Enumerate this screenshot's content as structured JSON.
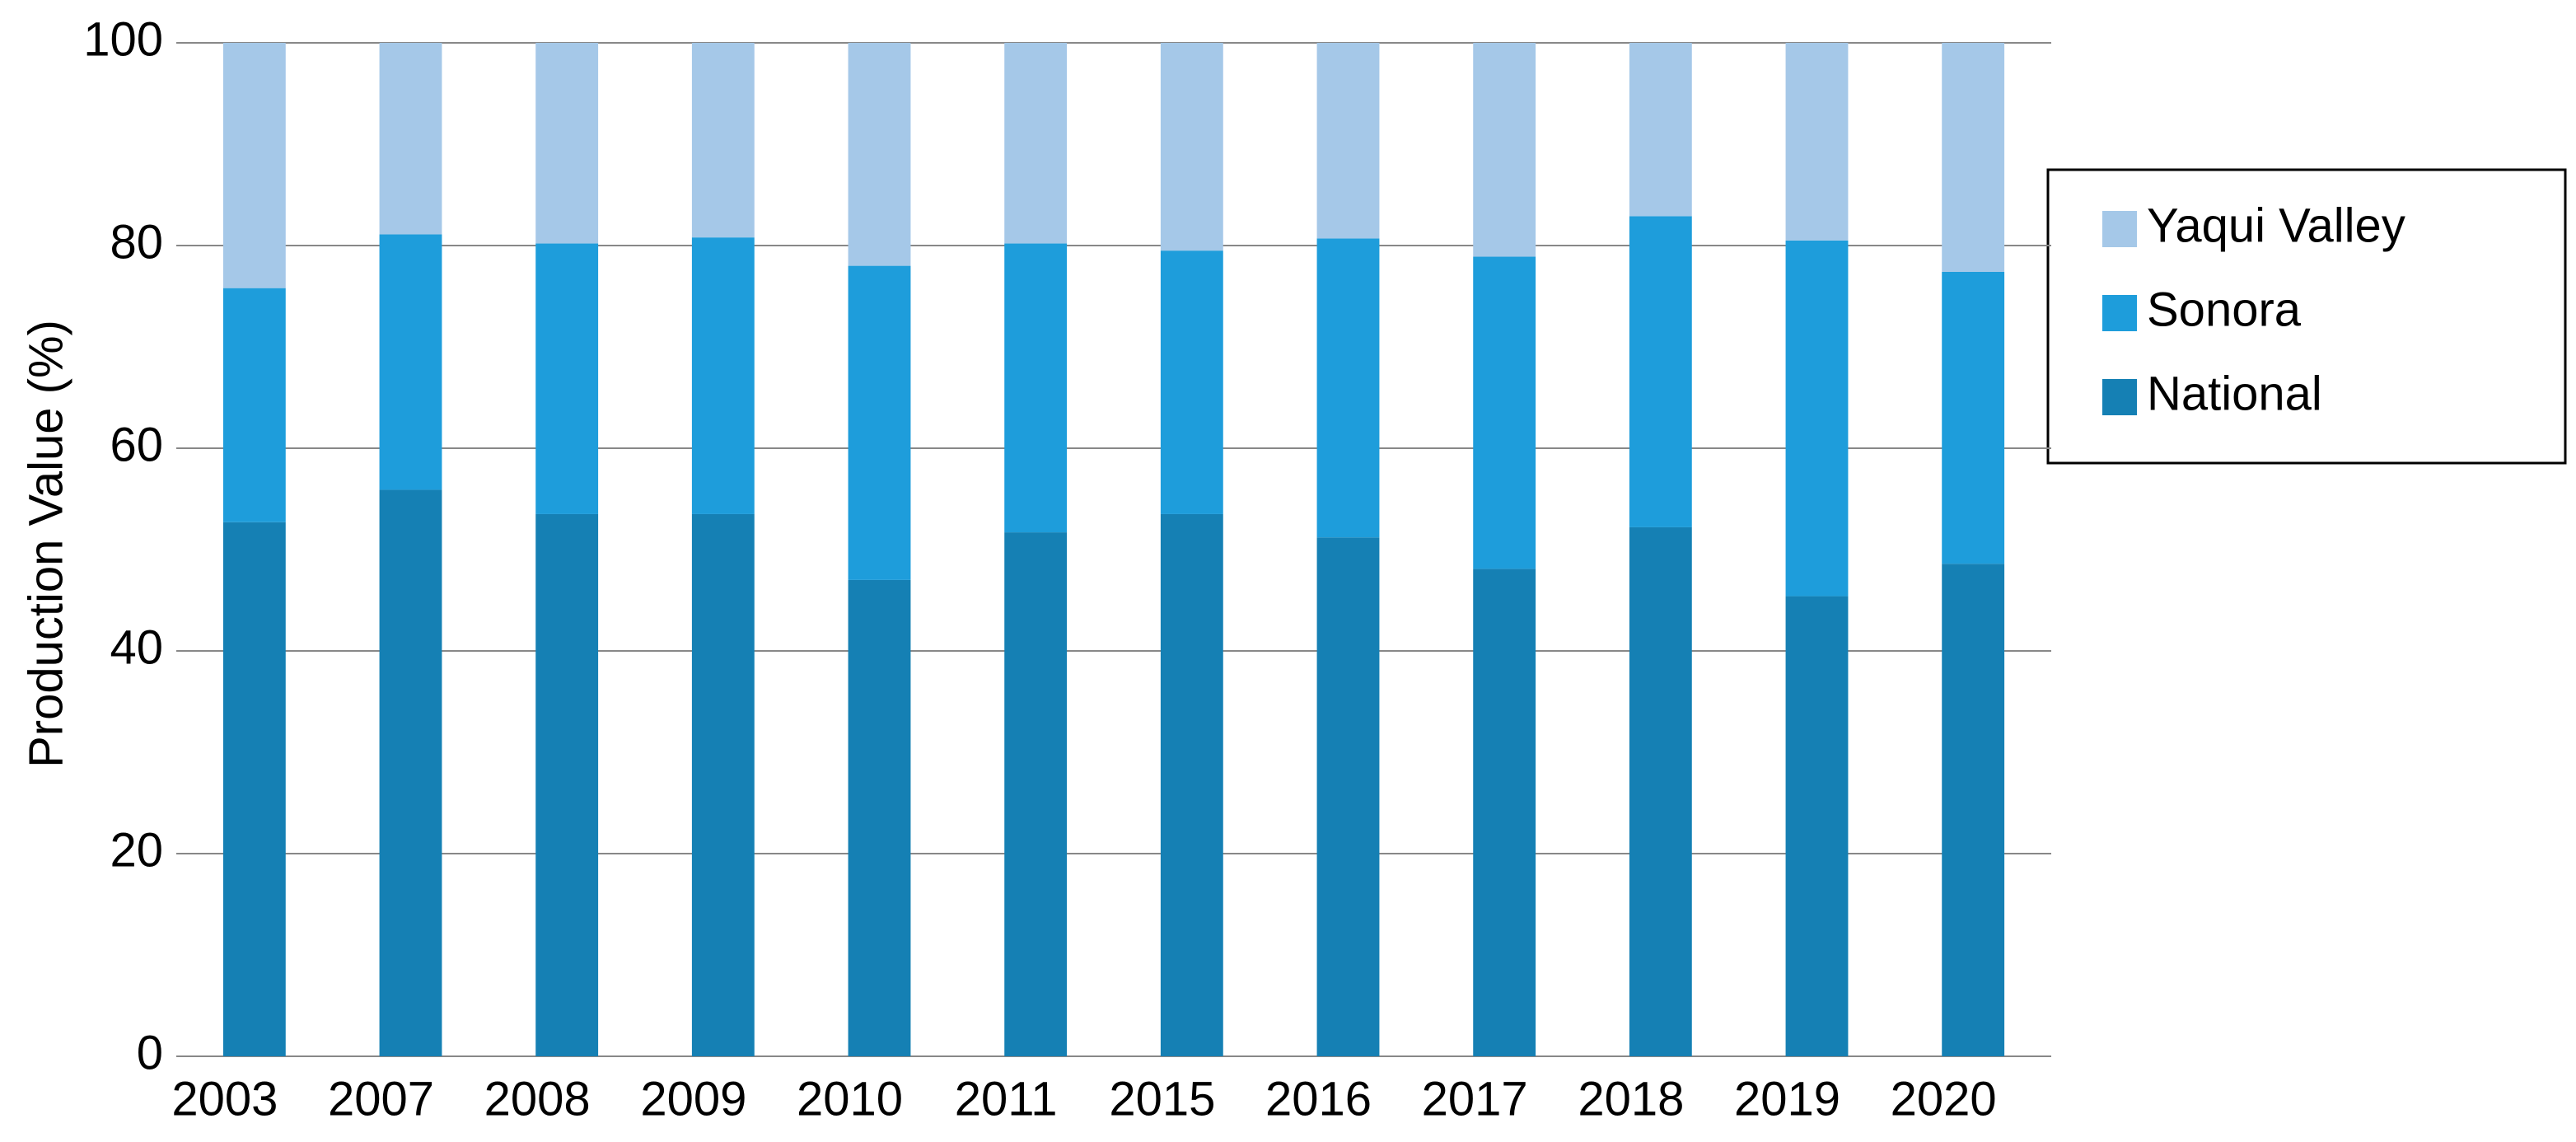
{
  "chart_data": {
    "type": "stacked_bar",
    "y_label": "Production Value (%)",
    "categories": [
      "2003",
      "2007",
      "2008",
      "2009",
      "2010",
      "2011",
      "2015",
      "2016",
      "2017",
      "2018",
      "2019",
      "2020"
    ],
    "series": [
      {
        "name": "National",
        "color": "#1580b4",
        "values": [
          52.7,
          55.9,
          53.5,
          53.5,
          47.0,
          51.7,
          53.5,
          51.2,
          48.1,
          52.2,
          45.4,
          48.6
        ]
      },
      {
        "name": "Sonora",
        "color": "#1e9ddb",
        "values": [
          23.1,
          25.2,
          26.7,
          27.3,
          31.0,
          28.5,
          26.0,
          29.5,
          30.8,
          30.7,
          35.1,
          28.8
        ]
      },
      {
        "name": "Yaqui Valley",
        "color": "#a5c8e8",
        "values": [
          24.2,
          18.9,
          19.8,
          19.2,
          22.0,
          19.8,
          20.5,
          19.3,
          21.1,
          17.1,
          19.5,
          22.6
        ]
      }
    ],
    "ylim": [
      0,
      100
    ],
    "yticks": [
      0,
      20,
      40,
      60,
      80,
      100
    ],
    "grid": true,
    "legend": "right"
  }
}
